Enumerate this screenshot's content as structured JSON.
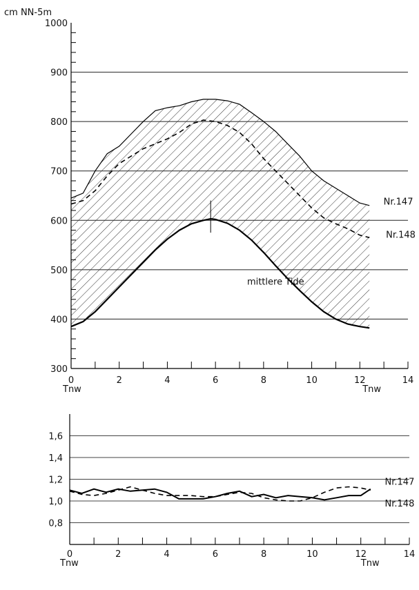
{
  "chart_data": [
    {
      "type": "line",
      "unit_label": "cm NN-5m",
      "xlabel_left": "Tnw",
      "xlabel_right": "Tnw",
      "xlim": [
        0,
        14
      ],
      "ylim": [
        300,
        1000
      ],
      "x_ticks": [
        0,
        2,
        4,
        6,
        8,
        10,
        12,
        14
      ],
      "y_ticks": [
        300,
        400,
        500,
        600,
        700,
        800,
        900,
        1000
      ],
      "grid": "horizontal lines at 400-900",
      "shaded_band_x": [
        0,
        12.4
      ],
      "series": [
        {
          "name": "Nr.147",
          "style": "solid",
          "x": [
            0,
            0.5,
            1,
            1.5,
            2,
            2.5,
            3,
            3.5,
            4,
            4.5,
            5,
            5.5,
            6,
            6.5,
            7,
            7.5,
            8,
            8.5,
            9,
            9.5,
            10,
            10.5,
            11,
            11.5,
            12,
            12.4
          ],
          "y": [
            645,
            655,
            700,
            735,
            750,
            775,
            800,
            822,
            828,
            832,
            840,
            845,
            845,
            842,
            835,
            818,
            800,
            780,
            755,
            730,
            700,
            680,
            665,
            650,
            635,
            630
          ]
        },
        {
          "name": "Nr.148",
          "style": "dashed",
          "x": [
            0,
            0.5,
            1,
            1.5,
            2,
            2.5,
            3,
            3.5,
            4,
            4.5,
            5,
            5.5,
            6,
            6.5,
            7,
            7.5,
            8,
            8.5,
            9,
            9.5,
            10,
            10.5,
            11,
            11.5,
            12,
            12.4
          ],
          "y": [
            633,
            640,
            660,
            690,
            715,
            730,
            745,
            755,
            765,
            778,
            795,
            803,
            800,
            792,
            778,
            755,
            725,
            700,
            675,
            650,
            625,
            605,
            593,
            583,
            570,
            565
          ]
        },
        {
          "name": "mittlere Tide",
          "style": "thick",
          "x": [
            0,
            0.5,
            1,
            1.5,
            2,
            2.5,
            3,
            3.5,
            4,
            4.5,
            5,
            5.5,
            5.8,
            6,
            6.5,
            7,
            7.5,
            8,
            8.5,
            9,
            9.5,
            10,
            10.5,
            11,
            11.5,
            12,
            12.4
          ],
          "y": [
            385,
            395,
            415,
            440,
            465,
            490,
            515,
            540,
            562,
            580,
            593,
            600,
            603,
            602,
            594,
            580,
            560,
            535,
            508,
            482,
            458,
            435,
            415,
            400,
            390,
            385,
            382
          ]
        }
      ],
      "annotations": [
        {
          "text": "mittlere Tide",
          "x": 8.5,
          "y": 470
        },
        {
          "text": "Nr.147",
          "x": 13.6,
          "y": 632
        },
        {
          "text": "Nr.148",
          "x": 13.7,
          "y": 565
        }
      ]
    },
    {
      "type": "line",
      "xlabel_left": "Tnw",
      "xlabel_right": "Tnw",
      "xlim": [
        0,
        14
      ],
      "ylim": [
        0.6,
        1.8
      ],
      "x_ticks": [
        0,
        2,
        4,
        6,
        8,
        10,
        12,
        14
      ],
      "y_ticks": [
        0.8,
        1.0,
        1.2,
        1.4,
        1.6
      ],
      "y_tick_labels": [
        "0,8",
        "1,0",
        "1,2",
        "1,4",
        "1,6"
      ],
      "grid": "horizontal lines at 0.8-1.6",
      "series": [
        {
          "name": "Nr.147",
          "style": "solid",
          "x": [
            0,
            0.5,
            1,
            1.5,
            2,
            2.5,
            3,
            3.5,
            4,
            4.5,
            5,
            5.5,
            6,
            6.5,
            7,
            7.5,
            8,
            8.5,
            9,
            9.5,
            10,
            10.5,
            11,
            11.5,
            12,
            12.4
          ],
          "y": [
            1.1,
            1.07,
            1.11,
            1.08,
            1.11,
            1.09,
            1.1,
            1.11,
            1.08,
            1.02,
            1.02,
            1.02,
            1.04,
            1.07,
            1.09,
            1.04,
            1.06,
            1.03,
            1.05,
            1.04,
            1.03,
            1.01,
            1.03,
            1.05,
            1.05,
            1.11
          ]
        },
        {
          "name": "Nr.148",
          "style": "dashed",
          "x": [
            0,
            0.5,
            1,
            1.5,
            2,
            2.5,
            3,
            3.5,
            4,
            4.5,
            5,
            5.5,
            6,
            6.5,
            7,
            7.5,
            8,
            8.5,
            9,
            9.5,
            10,
            10.5,
            11,
            11.5,
            12,
            12.4
          ],
          "y": [
            1.09,
            1.06,
            1.05,
            1.07,
            1.1,
            1.13,
            1.1,
            1.07,
            1.05,
            1.05,
            1.05,
            1.04,
            1.04,
            1.06,
            1.08,
            1.07,
            1.03,
            1.01,
            1.0,
            1.0,
            1.03,
            1.08,
            1.12,
            1.13,
            1.12,
            1.1
          ]
        }
      ],
      "annotations": [
        {
          "text": "Nr.147",
          "x": 13.6,
          "y": 1.15
        },
        {
          "text": "Nr.148",
          "x": 13.6,
          "y": 0.95
        }
      ]
    }
  ]
}
